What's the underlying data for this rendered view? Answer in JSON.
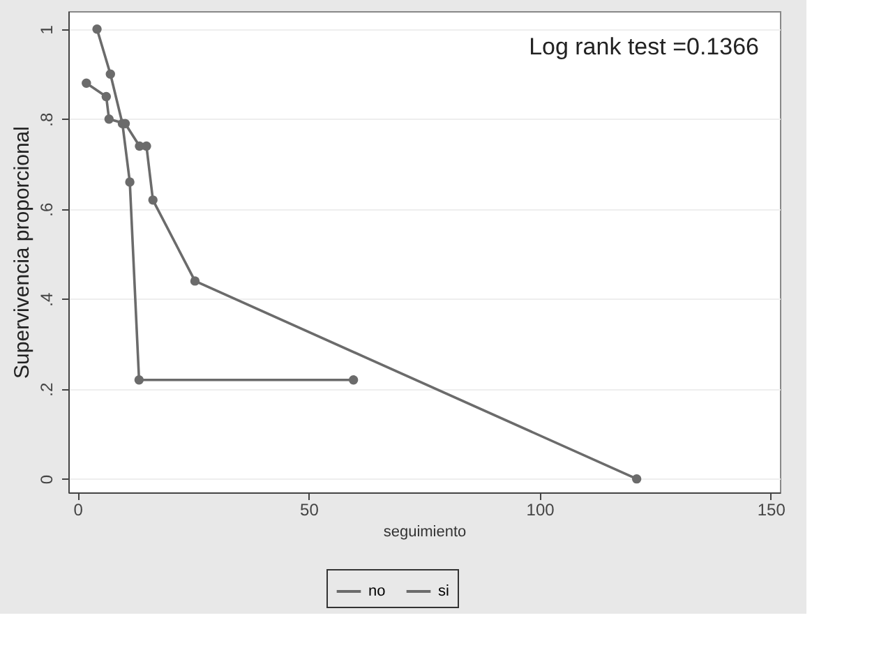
{
  "chart_data": {
    "type": "line",
    "xlabel": "seguimiento",
    "ylabel": "Supervivencia proporcional",
    "annotations": [
      "Log rank test =0.1366"
    ],
    "xlim": [
      -2,
      152
    ],
    "xticks": [
      0,
      50,
      100,
      150
    ],
    "ylim": [
      -0.03,
      1.04
    ],
    "yticks": [
      0,
      {
        "value": 0.2,
        "label": ".2"
      },
      {
        "value": 0.4,
        "label": ".4"
      },
      {
        "value": 0.6,
        "label": ".6"
      },
      {
        "value": 0.8,
        "label": ".8"
      },
      1
    ],
    "grid": "y",
    "legend": "bottom",
    "marker": "circle",
    "line_style": "solid",
    "series": [
      {
        "name": "no",
        "color": "#6b6b6b",
        "x": [
          4.2,
          7.1,
          9.7,
          11.3,
          13.3,
          59.7
        ],
        "values": [
          1.0,
          0.9,
          0.79,
          0.66,
          0.22,
          0.22
        ]
      },
      {
        "name": "si",
        "color": "#6b6b6b",
        "x": [
          1.9,
          6.2,
          6.8,
          10.3,
          13.4,
          14.9,
          16.3,
          25.4,
          121
        ],
        "values": [
          0.88,
          0.85,
          0.8,
          0.79,
          0.74,
          0.74,
          0.62,
          0.44,
          0.0
        ]
      }
    ]
  }
}
